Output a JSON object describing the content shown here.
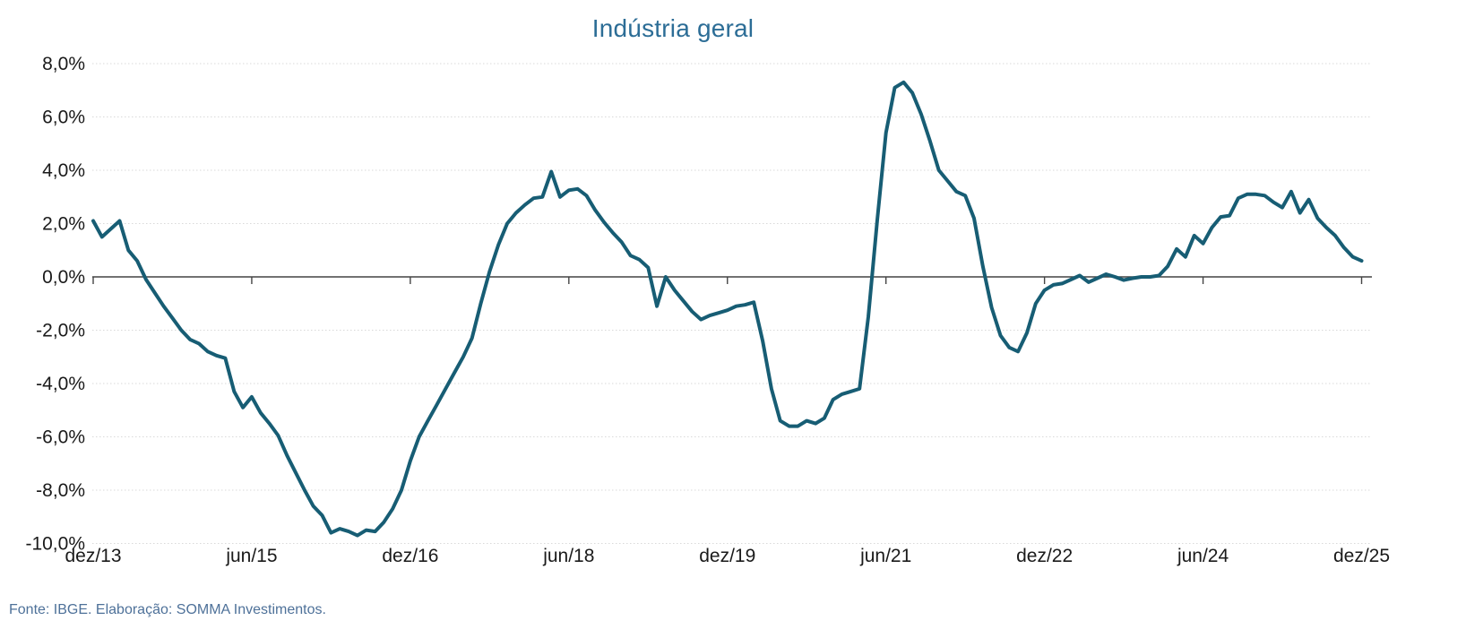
{
  "title": "Indústria geral",
  "source_note": "Fonte: IBGE. Elaboração: SOMMA Investimentos.",
  "colors": {
    "line": "#175d74",
    "title": "#2c6d96",
    "source": "#4e7199",
    "tick_label": "#1a1a1a",
    "grid": "#d9d9d9",
    "axis": "#444444"
  },
  "chart_data": {
    "type": "line",
    "title": "Indústria geral",
    "xlabel": "",
    "ylabel": "",
    "unit": "%",
    "ylim": [
      -10,
      8
    ],
    "y_step": 2,
    "grid": "horizontal-dotted",
    "legend": "none",
    "y_tick_labels": [
      "8,0%",
      "6,0%",
      "4,0%",
      "2,0%",
      "0,0%",
      "-2,0%",
      "-4,0%",
      "-6,0%",
      "-8,0%",
      "-10,0%"
    ],
    "y_tick_values": [
      8,
      6,
      4,
      2,
      0,
      -2,
      -4,
      -6,
      -8,
      -10
    ],
    "x_tick_labels": [
      "dez/13",
      "jun/15",
      "dez/16",
      "jun/18",
      "dez/19",
      "jun/21",
      "dez/22",
      "jun/24",
      "dez/25"
    ],
    "x_tick_months": [
      0,
      18,
      36,
      54,
      72,
      90,
      108,
      126,
      144
    ],
    "series": [
      {
        "name": "Indústria geral",
        "frequency": "monthly",
        "start": "dez/13",
        "end": "dez/25",
        "values": [
          2.1,
          1.5,
          1.8,
          2.1,
          1.0,
          0.6,
          -0.1,
          -0.6,
          -1.1,
          -1.55,
          -2.0,
          -2.35,
          -2.5,
          -2.8,
          -2.95,
          -3.05,
          -4.3,
          -4.9,
          -4.5,
          -5.1,
          -5.5,
          -5.95,
          -6.7,
          -7.35,
          -8.0,
          -8.6,
          -8.95,
          -9.6,
          -9.45,
          -9.55,
          -9.7,
          -9.5,
          -9.55,
          -9.2,
          -8.7,
          -8.0,
          -6.9,
          -6.0,
          -5.4,
          -4.8,
          -4.2,
          -3.6,
          -3.0,
          -2.3,
          -1.0,
          0.2,
          1.2,
          2.0,
          2.4,
          2.7,
          2.95,
          3.0,
          3.95,
          3.0,
          3.25,
          3.3,
          3.05,
          2.5,
          2.05,
          1.65,
          1.3,
          0.8,
          0.65,
          0.35,
          -1.1,
          0.0,
          -0.5,
          -0.9,
          -1.3,
          -1.6,
          -1.45,
          -1.35,
          -1.25,
          -1.1,
          -1.05,
          -0.95,
          -2.4,
          -4.2,
          -5.4,
          -5.6,
          -5.6,
          -5.4,
          -5.5,
          -5.3,
          -4.6,
          -4.4,
          -4.3,
          -4.2,
          -1.5,
          2.1,
          5.4,
          7.1,
          7.3,
          6.9,
          6.1,
          5.1,
          4.0,
          3.6,
          3.2,
          3.05,
          2.2,
          0.4,
          -1.15,
          -2.2,
          -2.65,
          -2.8,
          -2.1,
          -1.0,
          -0.5,
          -0.3,
          -0.25,
          -0.1,
          0.05,
          -0.2,
          -0.05,
          0.1,
          0.0,
          -0.12,
          -0.05,
          0.0,
          0.0,
          0.05,
          0.4,
          1.05,
          0.75,
          1.55,
          1.25,
          1.85,
          2.25,
          2.3,
          2.95,
          3.1,
          3.1,
          3.05,
          2.8,
          2.6,
          3.2,
          2.4,
          2.9,
          2.2,
          1.85,
          1.55,
          1.1,
          0.75,
          0.6
        ]
      }
    ]
  }
}
